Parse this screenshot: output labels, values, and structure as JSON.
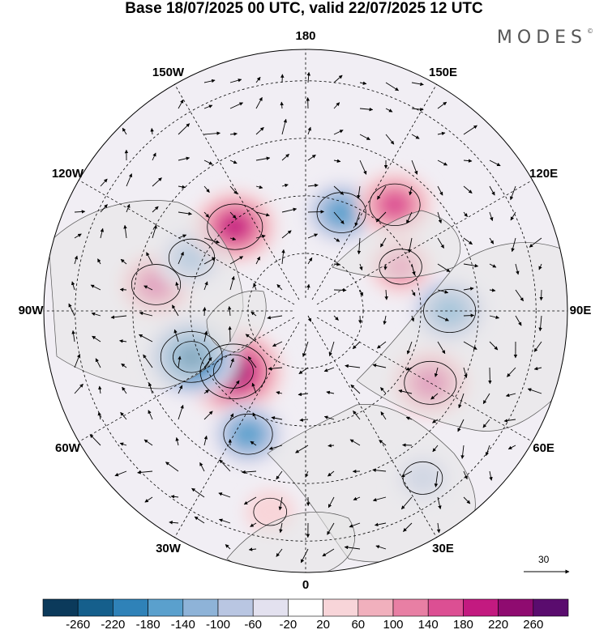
{
  "header": {
    "title": "Base 18/07/2025 00 UTC, valid 22/07/2025 12 UTC",
    "brand": "MODES",
    "brand_mark": "©"
  },
  "map": {
    "projection": "north-polar-stereographic",
    "longitude_labels": [
      {
        "text": "180",
        "lon": 180
      },
      {
        "text": "150E",
        "lon": 150
      },
      {
        "text": "120E",
        "lon": 120
      },
      {
        "text": "90E",
        "lon": 90
      },
      {
        "text": "60E",
        "lon": 60
      },
      {
        "text": "30E",
        "lon": 30
      },
      {
        "text": "0",
        "lon": 0
      },
      {
        "text": "30W",
        "lon": -30
      },
      {
        "text": "60W",
        "lon": -60
      },
      {
        "text": "90W",
        "lon": -90
      },
      {
        "text": "120W",
        "lon": -120
      },
      {
        "text": "150W",
        "lon": -150
      }
    ],
    "anomalies": [
      {
        "lon": -50,
        "colat": 0.36,
        "value": 250
      },
      {
        "lon": -68,
        "colat": 0.47,
        "value": -220
      },
      {
        "lon": -25,
        "colat": 0.52,
        "value": -140
      },
      {
        "lon": -100,
        "colat": 0.58,
        "value": 140
      },
      {
        "lon": -115,
        "colat": 0.48,
        "value": -120
      },
      {
        "lon": -140,
        "colat": 0.42,
        "value": 180
      },
      {
        "lon": 160,
        "colat": 0.4,
        "value": -140
      },
      {
        "lon": 140,
        "colat": 0.53,
        "value": 150
      },
      {
        "lon": 115,
        "colat": 0.4,
        "value": 100
      },
      {
        "lon": 90,
        "colat": 0.55,
        "value": -160
      },
      {
        "lon": 60,
        "colat": 0.55,
        "value": 160
      },
      {
        "lon": 35,
        "colat": 0.78,
        "value": -80
      },
      {
        "lon": -10,
        "colat": 0.78,
        "value": 40
      }
    ],
    "wind_reference": {
      "label": "30",
      "value": 30
    }
  },
  "colorbar": {
    "levels": [
      "-260",
      "-220",
      "-180",
      "-140",
      "-100",
      "-60",
      "-20",
      "20",
      "60",
      "100",
      "140",
      "180",
      "220",
      "260"
    ],
    "colors": [
      "#0b3a5b",
      "#155f8c",
      "#2f82b8",
      "#5aa0cd",
      "#8eb3d8",
      "#b9c6e2",
      "#e3e1ef",
      "#ffffff",
      "#f8d5d9",
      "#f1b0bd",
      "#e87fa4",
      "#dc4f93",
      "#c31a80",
      "#8f0b70",
      "#5a0c6e"
    ]
  }
}
